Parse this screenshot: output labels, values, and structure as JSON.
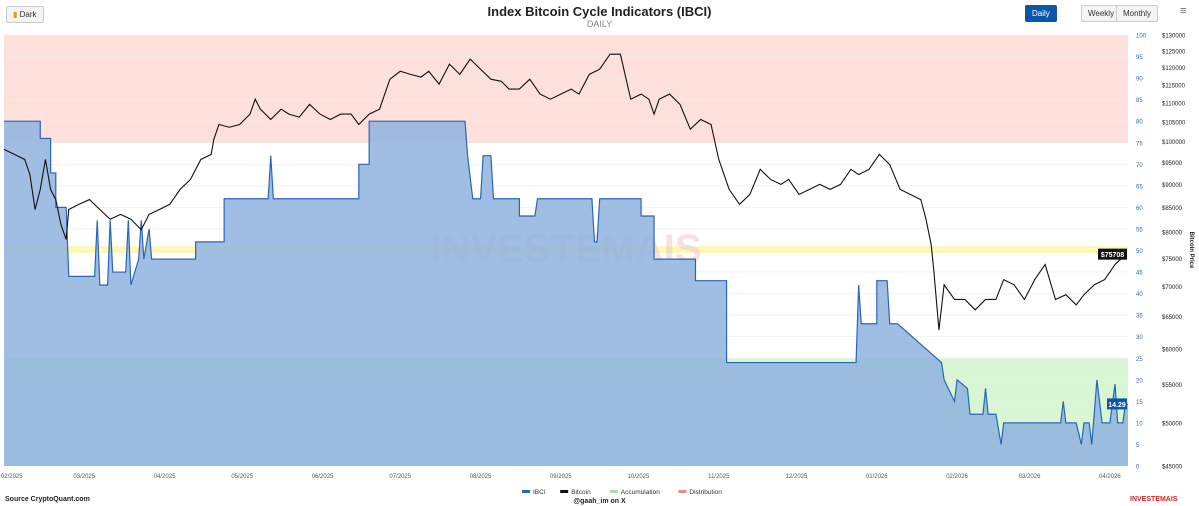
{
  "header": {
    "dark_label": "Dark",
    "title": "Index Bitcoin Cycle Indicators (IBCI)",
    "subtitle": "DAILY",
    "periods": [
      "Daily",
      "Weekly",
      "Monthly"
    ],
    "menu_icon": "hamburger-icon"
  },
  "footer": {
    "source": "Source CryptoQuant.com",
    "credit": "@gaah_im on X",
    "brand": "INVESTEMAIS"
  },
  "chart_data": {
    "type": "area",
    "title": "Index Bitcoin Cycle Indicators (IBCI)",
    "x_unit": "days since 2025-01-29",
    "xlim": [
      0,
      434
    ],
    "x_ticks": [
      {
        "d": 3,
        "l": "02/2025"
      },
      {
        "d": 31,
        "l": "03/2025"
      },
      {
        "d": 62,
        "l": "04/2025"
      },
      {
        "d": 92,
        "l": "05/2025"
      },
      {
        "d": 123,
        "l": "06/2025"
      },
      {
        "d": 153,
        "l": "07/2025"
      },
      {
        "d": 184,
        "l": "08/2025"
      },
      {
        "d": 215,
        "l": "09/2025"
      },
      {
        "d": 245,
        "l": "10/2025"
      },
      {
        "d": 276,
        "l": "11/2025"
      },
      {
        "d": 306,
        "l": "12/2025"
      },
      {
        "d": 337,
        "l": "01/2026"
      },
      {
        "d": 368,
        "l": "02/2026"
      },
      {
        "d": 396,
        "l": "03/2026"
      },
      {
        "d": 427,
        "l": "04/2026"
      }
    ],
    "ibci_axis": {
      "ylim": [
        0,
        100
      ],
      "ticks": [
        0,
        5,
        10,
        15,
        20,
        25,
        30,
        35,
        40,
        45,
        50,
        55,
        60,
        65,
        70,
        75,
        80,
        85,
        90,
        95,
        100
      ]
    },
    "price_axis": {
      "label": "Bitcoin Price",
      "scale": "log",
      "ylim": [
        45000,
        130000
      ],
      "ticks": [
        "$45000",
        "$50000",
        "$55000",
        "$60000",
        "$65000",
        "$70000",
        "$75000",
        "$80000",
        "$85000",
        "$90000",
        "$95000",
        "$100000",
        "$105000",
        "$110000",
        "$115000",
        "$120000",
        "$125000",
        "$130000"
      ],
      "tick_values": [
        45000,
        50000,
        55000,
        60000,
        65000,
        70000,
        75000,
        80000,
        85000,
        90000,
        95000,
        100000,
        105000,
        110000,
        115000,
        120000,
        125000,
        130000
      ]
    },
    "zones": {
      "distribution": [
        75,
        100
      ],
      "accumulation": [
        0,
        25
      ],
      "neutral_band": [
        49.4,
        51
      ]
    },
    "legend": [
      "IBCI",
      "Bitcoin",
      "Accumulation",
      "Distribution"
    ],
    "legend_position": "bottom",
    "colors": {
      "ibci": "#2a66b8",
      "ibci_fill": "#8fb3df",
      "bitcoin": "#111111",
      "accumulation": "#d8f5d4",
      "distribution": "#fde0dc",
      "band": "#fdf7b8"
    },
    "last_price_label": "$75708",
    "last_ibci_label": "14.29",
    "watermark": "INVESTEMAIS",
    "ibci": [
      [
        0,
        80
      ],
      [
        14,
        80
      ],
      [
        14,
        76
      ],
      [
        18,
        76
      ],
      [
        18,
        68
      ],
      [
        20,
        68
      ],
      [
        20,
        60
      ],
      [
        24,
        60
      ],
      [
        25,
        44
      ],
      [
        35,
        44
      ],
      [
        36,
        57
      ],
      [
        37,
        42
      ],
      [
        40,
        42
      ],
      [
        41,
        57
      ],
      [
        42,
        45
      ],
      [
        47,
        45
      ],
      [
        48,
        57
      ],
      [
        49,
        42
      ],
      [
        52,
        48
      ],
      [
        53,
        57
      ],
      [
        54,
        48
      ],
      [
        56,
        55
      ],
      [
        57,
        48
      ],
      [
        74,
        48
      ],
      [
        74,
        52
      ],
      [
        85,
        52
      ],
      [
        85,
        62
      ],
      [
        102,
        62
      ],
      [
        103,
        72
      ],
      [
        104,
        62
      ],
      [
        137,
        62
      ],
      [
        137,
        70
      ],
      [
        141,
        70
      ],
      [
        141,
        80
      ],
      [
        178,
        80
      ],
      [
        179,
        72
      ],
      [
        181,
        62
      ],
      [
        184,
        62
      ],
      [
        185,
        72
      ],
      [
        188,
        72
      ],
      [
        189,
        62
      ],
      [
        199,
        62
      ],
      [
        199,
        58
      ],
      [
        205,
        58
      ],
      [
        206,
        62
      ],
      [
        227,
        62
      ],
      [
        228,
        52
      ],
      [
        229,
        52
      ],
      [
        230,
        62
      ],
      [
        246,
        62
      ],
      [
        246,
        58
      ],
      [
        251,
        58
      ],
      [
        251,
        48
      ],
      [
        267,
        48
      ],
      [
        267,
        43
      ],
      [
        279,
        43
      ],
      [
        279,
        24
      ],
      [
        329,
        24
      ],
      [
        330,
        42
      ],
      [
        331,
        33
      ],
      [
        337,
        33
      ],
      [
        337,
        43
      ],
      [
        341,
        43
      ],
      [
        342,
        33
      ],
      [
        345,
        33
      ],
      [
        362,
        24
      ],
      [
        363,
        20
      ],
      [
        367,
        15
      ],
      [
        368,
        20
      ],
      [
        372,
        18
      ],
      [
        373,
        12
      ],
      [
        378,
        12
      ],
      [
        379,
        18
      ],
      [
        380,
        12
      ],
      [
        383,
        12
      ],
      [
        385,
        5
      ],
      [
        386,
        10
      ],
      [
        408,
        10
      ],
      [
        409,
        15
      ],
      [
        410,
        10
      ],
      [
        414,
        10
      ],
      [
        416,
        5
      ],
      [
        417,
        10
      ],
      [
        419,
        10
      ],
      [
        420,
        5
      ],
      [
        422,
        20
      ],
      [
        424,
        10
      ],
      [
        427,
        10
      ],
      [
        429,
        19
      ],
      [
        430,
        10
      ],
      [
        432,
        10
      ],
      [
        433,
        14.29
      ],
      [
        434,
        14.29
      ]
    ],
    "bitcoin": [
      [
        0,
        98100
      ],
      [
        4,
        96900
      ],
      [
        8,
        95700
      ],
      [
        10,
        92200
      ],
      [
        12,
        84600
      ],
      [
        14,
        88900
      ],
      [
        16,
        95700
      ],
      [
        18,
        88900
      ],
      [
        20,
        86700
      ],
      [
        22,
        81500
      ],
      [
        24,
        78600
      ],
      [
        25,
        84600
      ],
      [
        29,
        85700
      ],
      [
        33,
        86700
      ],
      [
        37,
        84600
      ],
      [
        41,
        82600
      ],
      [
        45,
        83600
      ],
      [
        49,
        82600
      ],
      [
        53,
        80500
      ],
      [
        56,
        83600
      ],
      [
        60,
        84600
      ],
      [
        64,
        85700
      ],
      [
        68,
        88900
      ],
      [
        72,
        91100
      ],
      [
        76,
        95700
      ],
      [
        80,
        96900
      ],
      [
        81,
        100500
      ],
      [
        83,
        104300
      ],
      [
        87,
        103600
      ],
      [
        91,
        104300
      ],
      [
        95,
        107000
      ],
      [
        97,
        111000
      ],
      [
        99,
        108300
      ],
      [
        103,
        105600
      ],
      [
        107,
        108300
      ],
      [
        110,
        107000
      ],
      [
        114,
        106200
      ],
      [
        118,
        109600
      ],
      [
        122,
        107000
      ],
      [
        126,
        105600
      ],
      [
        130,
        107000
      ],
      [
        134,
        107000
      ],
      [
        137,
        104300
      ],
      [
        141,
        107000
      ],
      [
        145,
        108300
      ],
      [
        149,
        116600
      ],
      [
        153,
        118900
      ],
      [
        157,
        118000
      ],
      [
        161,
        117200
      ],
      [
        164,
        118900
      ],
      [
        168,
        115200
      ],
      [
        172,
        121000
      ],
      [
        176,
        118000
      ],
      [
        180,
        122500
      ],
      [
        184,
        119500
      ],
      [
        188,
        116600
      ],
      [
        192,
        116000
      ],
      [
        195,
        113800
      ],
      [
        199,
        113800
      ],
      [
        203,
        116600
      ],
      [
        207,
        112400
      ],
      [
        211,
        111000
      ],
      [
        215,
        112400
      ],
      [
        219,
        113800
      ],
      [
        222,
        112400
      ],
      [
        226,
        118000
      ],
      [
        230,
        119500
      ],
      [
        234,
        124000
      ],
      [
        238,
        124000
      ],
      [
        242,
        111000
      ],
      [
        246,
        112400
      ],
      [
        249,
        111000
      ],
      [
        251,
        107000
      ],
      [
        253,
        111000
      ],
      [
        257,
        112400
      ],
      [
        261,
        109600
      ],
      [
        265,
        103100
      ],
      [
        269,
        105600
      ],
      [
        273,
        104300
      ],
      [
        276,
        95700
      ],
      [
        280,
        88900
      ],
      [
        284,
        85700
      ],
      [
        288,
        87800
      ],
      [
        292,
        93400
      ],
      [
        296,
        91100
      ],
      [
        300,
        90000
      ],
      [
        303,
        91100
      ],
      [
        307,
        87800
      ],
      [
        311,
        88900
      ],
      [
        315,
        90000
      ],
      [
        319,
        88900
      ],
      [
        323,
        90000
      ],
      [
        327,
        93400
      ],
      [
        330,
        92200
      ],
      [
        334,
        93400
      ],
      [
        338,
        96900
      ],
      [
        342,
        94500
      ],
      [
        346,
        88900
      ],
      [
        350,
        87800
      ],
      [
        354,
        86700
      ],
      [
        356,
        82600
      ],
      [
        358,
        77600
      ],
      [
        359,
        72900
      ],
      [
        361,
        62900
      ],
      [
        363,
        70300
      ],
      [
        367,
        67800
      ],
      [
        371,
        67800
      ],
      [
        375,
        66100
      ],
      [
        379,
        67800
      ],
      [
        383,
        67800
      ],
      [
        386,
        71200
      ],
      [
        390,
        70300
      ],
      [
        394,
        67800
      ],
      [
        398,
        71200
      ],
      [
        402,
        73900
      ],
      [
        406,
        67800
      ],
      [
        410,
        68600
      ],
      [
        414,
        66900
      ],
      [
        417,
        68600
      ],
      [
        421,
        70300
      ],
      [
        425,
        71200
      ],
      [
        429,
        73900
      ],
      [
        433,
        75708
      ]
    ]
  }
}
